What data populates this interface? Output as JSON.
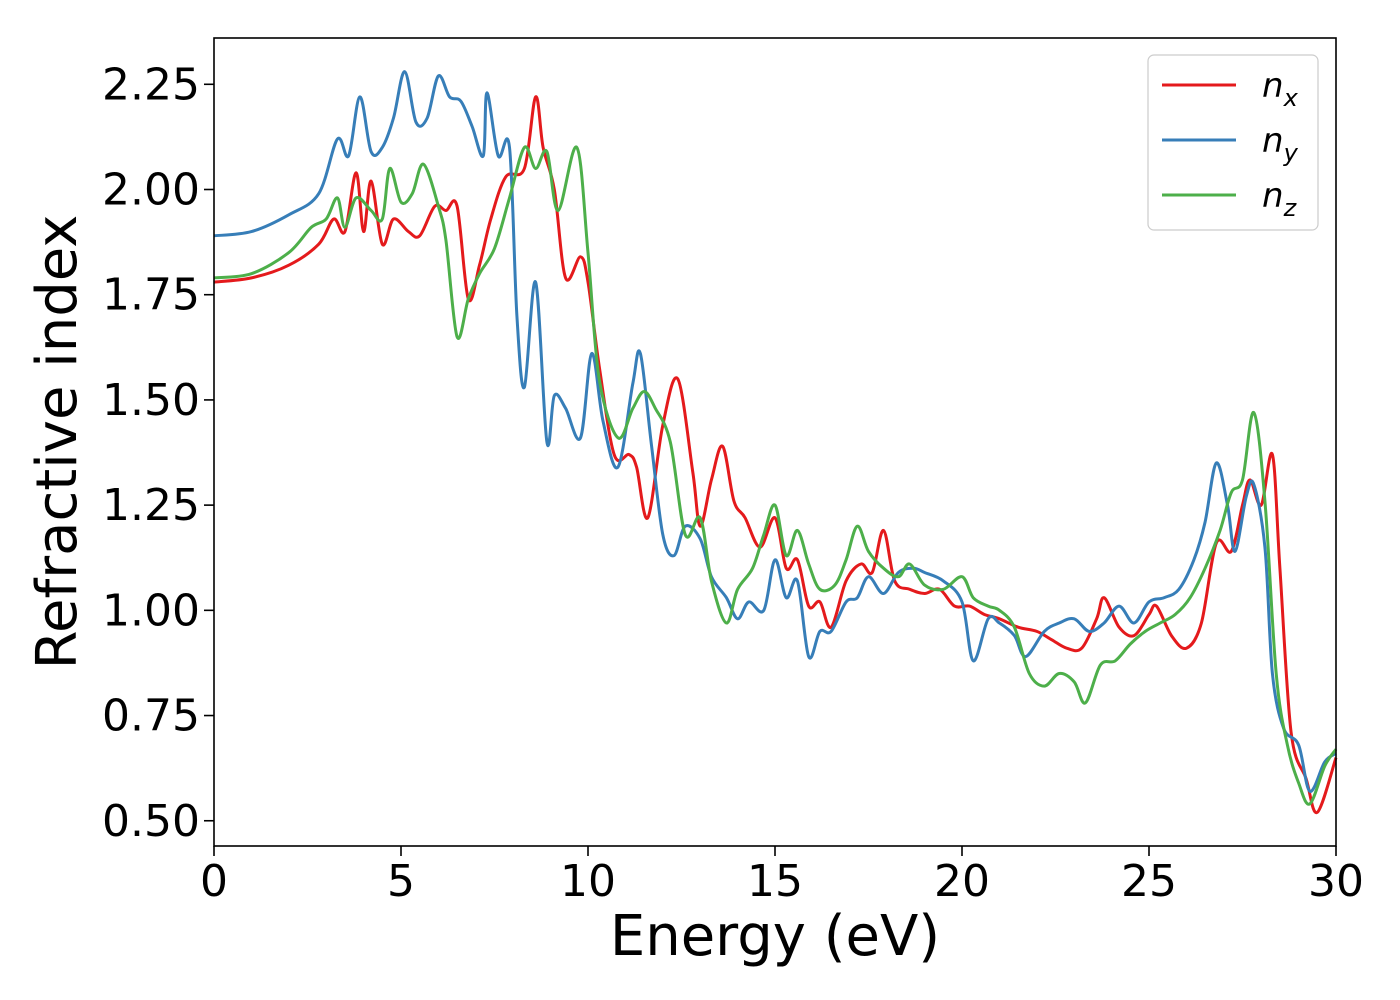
{
  "chart_data": {
    "type": "line",
    "xlabel": "Energy (eV)",
    "ylabel": "Refractive index",
    "xlim": [
      0,
      30
    ],
    "ylim": [
      0.44,
      2.36
    ],
    "xticks": [
      "0",
      "5",
      "10",
      "15",
      "20",
      "25",
      "30"
    ],
    "yticks": [
      "0.50",
      "0.75",
      "1.00",
      "1.25",
      "1.50",
      "1.75",
      "2.00",
      "2.25"
    ],
    "grid": false,
    "legend_position": "top-right",
    "series": [
      {
        "name": "n",
        "subscript": "x",
        "color": "#e41a1c",
        "points": [
          [
            0,
            1.78
          ],
          [
            1,
            1.79
          ],
          [
            2,
            1.82
          ],
          [
            2.8,
            1.87
          ],
          [
            3.2,
            1.93
          ],
          [
            3.5,
            1.9
          ],
          [
            3.8,
            2.04
          ],
          [
            4.0,
            1.9
          ],
          [
            4.2,
            2.02
          ],
          [
            4.5,
            1.87
          ],
          [
            4.8,
            1.93
          ],
          [
            5.2,
            1.9
          ],
          [
            5.5,
            1.89
          ],
          [
            5.9,
            1.96
          ],
          [
            6.2,
            1.95
          ],
          [
            6.5,
            1.96
          ],
          [
            6.8,
            1.74
          ],
          [
            7.1,
            1.82
          ],
          [
            7.4,
            1.93
          ],
          [
            7.8,
            2.03
          ],
          [
            8.3,
            2.05
          ],
          [
            8.6,
            2.22
          ],
          [
            8.8,
            2.1
          ],
          [
            9.1,
            2.0
          ],
          [
            9.4,
            1.79
          ],
          [
            9.8,
            1.84
          ],
          [
            10.0,
            1.78
          ],
          [
            10.3,
            1.58
          ],
          [
            10.7,
            1.37
          ],
          [
            11.1,
            1.37
          ],
          [
            11.3,
            1.34
          ],
          [
            11.6,
            1.22
          ],
          [
            12.0,
            1.44
          ],
          [
            12.4,
            1.55
          ],
          [
            12.8,
            1.33
          ],
          [
            13.0,
            1.2
          ],
          [
            13.3,
            1.31
          ],
          [
            13.6,
            1.39
          ],
          [
            13.9,
            1.26
          ],
          [
            14.2,
            1.22
          ],
          [
            14.6,
            1.15
          ],
          [
            15.0,
            1.22
          ],
          [
            15.3,
            1.1
          ],
          [
            15.6,
            1.12
          ],
          [
            15.9,
            1.01
          ],
          [
            16.2,
            1.02
          ],
          [
            16.5,
            0.96
          ],
          [
            16.9,
            1.07
          ],
          [
            17.3,
            1.11
          ],
          [
            17.6,
            1.09
          ],
          [
            17.9,
            1.19
          ],
          [
            18.2,
            1.07
          ],
          [
            18.6,
            1.05
          ],
          [
            19.0,
            1.04
          ],
          [
            19.4,
            1.05
          ],
          [
            19.8,
            1.01
          ],
          [
            20.2,
            1.01
          ],
          [
            20.6,
            0.99
          ],
          [
            21.0,
            0.98
          ],
          [
            21.5,
            0.96
          ],
          [
            22.0,
            0.95
          ],
          [
            22.4,
            0.93
          ],
          [
            22.8,
            0.91
          ],
          [
            23.2,
            0.91
          ],
          [
            23.6,
            0.98
          ],
          [
            23.8,
            1.03
          ],
          [
            24.2,
            0.96
          ],
          [
            24.6,
            0.94
          ],
          [
            25.0,
            0.99
          ],
          [
            25.2,
            1.01
          ],
          [
            25.6,
            0.94
          ],
          [
            26.0,
            0.91
          ],
          [
            26.4,
            0.97
          ],
          [
            26.8,
            1.16
          ],
          [
            27.2,
            1.14
          ],
          [
            27.5,
            1.25
          ],
          [
            27.7,
            1.31
          ],
          [
            28.0,
            1.25
          ],
          [
            28.3,
            1.37
          ],
          [
            28.5,
            1.1
          ],
          [
            28.8,
            0.71
          ],
          [
            29.2,
            0.6
          ],
          [
            29.5,
            0.52
          ],
          [
            30,
            0.65
          ]
        ]
      },
      {
        "name": "n",
        "subscript": "y",
        "color": "#377eb8",
        "points": [
          [
            0,
            1.89
          ],
          [
            1,
            1.9
          ],
          [
            2,
            1.94
          ],
          [
            2.8,
            1.99
          ],
          [
            3.3,
            2.12
          ],
          [
            3.6,
            2.08
          ],
          [
            3.9,
            2.22
          ],
          [
            4.2,
            2.09
          ],
          [
            4.5,
            2.1
          ],
          [
            4.8,
            2.17
          ],
          [
            5.1,
            2.28
          ],
          [
            5.4,
            2.16
          ],
          [
            5.7,
            2.17
          ],
          [
            6.0,
            2.27
          ],
          [
            6.3,
            2.22
          ],
          [
            6.6,
            2.21
          ],
          [
            6.9,
            2.15
          ],
          [
            7.2,
            2.08
          ],
          [
            7.3,
            2.23
          ],
          [
            7.6,
            2.08
          ],
          [
            7.9,
            2.1
          ],
          [
            8.1,
            1.7
          ],
          [
            8.3,
            1.53
          ],
          [
            8.6,
            1.78
          ],
          [
            8.9,
            1.4
          ],
          [
            9.1,
            1.51
          ],
          [
            9.4,
            1.48
          ],
          [
            9.8,
            1.41
          ],
          [
            10.1,
            1.61
          ],
          [
            10.4,
            1.45
          ],
          [
            10.8,
            1.34
          ],
          [
            11.2,
            1.54
          ],
          [
            11.4,
            1.61
          ],
          [
            11.7,
            1.39
          ],
          [
            12.0,
            1.18
          ],
          [
            12.3,
            1.13
          ],
          [
            12.6,
            1.2
          ],
          [
            13.0,
            1.17
          ],
          [
            13.3,
            1.08
          ],
          [
            13.7,
            1.03
          ],
          [
            14.0,
            0.98
          ],
          [
            14.3,
            1.02
          ],
          [
            14.7,
            1.0
          ],
          [
            15.0,
            1.12
          ],
          [
            15.3,
            1.03
          ],
          [
            15.6,
            1.07
          ],
          [
            15.9,
            0.89
          ],
          [
            16.2,
            0.95
          ],
          [
            16.5,
            0.95
          ],
          [
            16.9,
            1.02
          ],
          [
            17.2,
            1.03
          ],
          [
            17.5,
            1.08
          ],
          [
            17.9,
            1.04
          ],
          [
            18.3,
            1.09
          ],
          [
            18.7,
            1.1
          ],
          [
            19.0,
            1.09
          ],
          [
            19.5,
            1.07
          ],
          [
            20.0,
            1.02
          ],
          [
            20.3,
            0.88
          ],
          [
            20.7,
            0.98
          ],
          [
            21.0,
            0.97
          ],
          [
            21.4,
            0.94
          ],
          [
            21.7,
            0.89
          ],
          [
            22.2,
            0.95
          ],
          [
            22.6,
            0.97
          ],
          [
            23.0,
            0.98
          ],
          [
            23.4,
            0.95
          ],
          [
            23.8,
            0.97
          ],
          [
            24.2,
            1.01
          ],
          [
            24.6,
            0.97
          ],
          [
            25.0,
            1.02
          ],
          [
            25.4,
            1.03
          ],
          [
            25.8,
            1.05
          ],
          [
            26.2,
            1.12
          ],
          [
            26.5,
            1.21
          ],
          [
            26.8,
            1.35
          ],
          [
            27.1,
            1.25
          ],
          [
            27.3,
            1.14
          ],
          [
            27.6,
            1.27
          ],
          [
            27.8,
            1.3
          ],
          [
            28.1,
            1.15
          ],
          [
            28.3,
            0.85
          ],
          [
            28.6,
            0.72
          ],
          [
            29.0,
            0.68
          ],
          [
            29.3,
            0.57
          ],
          [
            29.7,
            0.64
          ],
          [
            30,
            0.66
          ]
        ]
      },
      {
        "name": "n",
        "subscript": "z",
        "color": "#4daf4a",
        "points": [
          [
            0,
            1.79
          ],
          [
            1,
            1.8
          ],
          [
            2,
            1.85
          ],
          [
            2.6,
            1.91
          ],
          [
            3.0,
            1.93
          ],
          [
            3.3,
            1.98
          ],
          [
            3.5,
            1.91
          ],
          [
            3.8,
            1.98
          ],
          [
            4.2,
            1.95
          ],
          [
            4.5,
            1.93
          ],
          [
            4.7,
            2.05
          ],
          [
            5.0,
            1.97
          ],
          [
            5.3,
            1.99
          ],
          [
            5.6,
            2.06
          ],
          [
            6.0,
            1.96
          ],
          [
            6.2,
            1.88
          ],
          [
            6.5,
            1.65
          ],
          [
            6.8,
            1.74
          ],
          [
            7.1,
            1.8
          ],
          [
            7.5,
            1.86
          ],
          [
            7.9,
            1.98
          ],
          [
            8.3,
            2.1
          ],
          [
            8.6,
            2.05
          ],
          [
            8.9,
            2.09
          ],
          [
            9.2,
            1.95
          ],
          [
            9.7,
            2.1
          ],
          [
            10.0,
            1.85
          ],
          [
            10.3,
            1.55
          ],
          [
            10.8,
            1.41
          ],
          [
            11.2,
            1.48
          ],
          [
            11.5,
            1.52
          ],
          [
            11.8,
            1.48
          ],
          [
            12.2,
            1.4
          ],
          [
            12.6,
            1.18
          ],
          [
            13.0,
            1.22
          ],
          [
            13.3,
            1.07
          ],
          [
            13.7,
            0.97
          ],
          [
            14.0,
            1.05
          ],
          [
            14.4,
            1.1
          ],
          [
            14.7,
            1.18
          ],
          [
            15.0,
            1.25
          ],
          [
            15.3,
            1.13
          ],
          [
            15.6,
            1.19
          ],
          [
            15.9,
            1.11
          ],
          [
            16.2,
            1.05
          ],
          [
            16.6,
            1.06
          ],
          [
            16.9,
            1.12
          ],
          [
            17.2,
            1.2
          ],
          [
            17.5,
            1.14
          ],
          [
            17.9,
            1.1
          ],
          [
            18.3,
            1.08
          ],
          [
            18.6,
            1.11
          ],
          [
            19.0,
            1.06
          ],
          [
            19.5,
            1.05
          ],
          [
            20.0,
            1.08
          ],
          [
            20.3,
            1.03
          ],
          [
            20.7,
            1.01
          ],
          [
            21.0,
            1.0
          ],
          [
            21.4,
            0.96
          ],
          [
            21.8,
            0.85
          ],
          [
            22.2,
            0.82
          ],
          [
            22.6,
            0.85
          ],
          [
            23.0,
            0.83
          ],
          [
            23.3,
            0.78
          ],
          [
            23.7,
            0.87
          ],
          [
            24.1,
            0.88
          ],
          [
            24.5,
            0.92
          ],
          [
            24.9,
            0.95
          ],
          [
            25.3,
            0.97
          ],
          [
            25.7,
            0.99
          ],
          [
            26.1,
            1.03
          ],
          [
            26.5,
            1.1
          ],
          [
            26.9,
            1.19
          ],
          [
            27.2,
            1.28
          ],
          [
            27.5,
            1.31
          ],
          [
            27.8,
            1.47
          ],
          [
            28.1,
            1.26
          ],
          [
            28.4,
            0.85
          ],
          [
            28.7,
            0.68
          ],
          [
            29.0,
            0.59
          ],
          [
            29.3,
            0.54
          ],
          [
            29.7,
            0.63
          ],
          [
            30,
            0.67
          ]
        ]
      }
    ]
  }
}
